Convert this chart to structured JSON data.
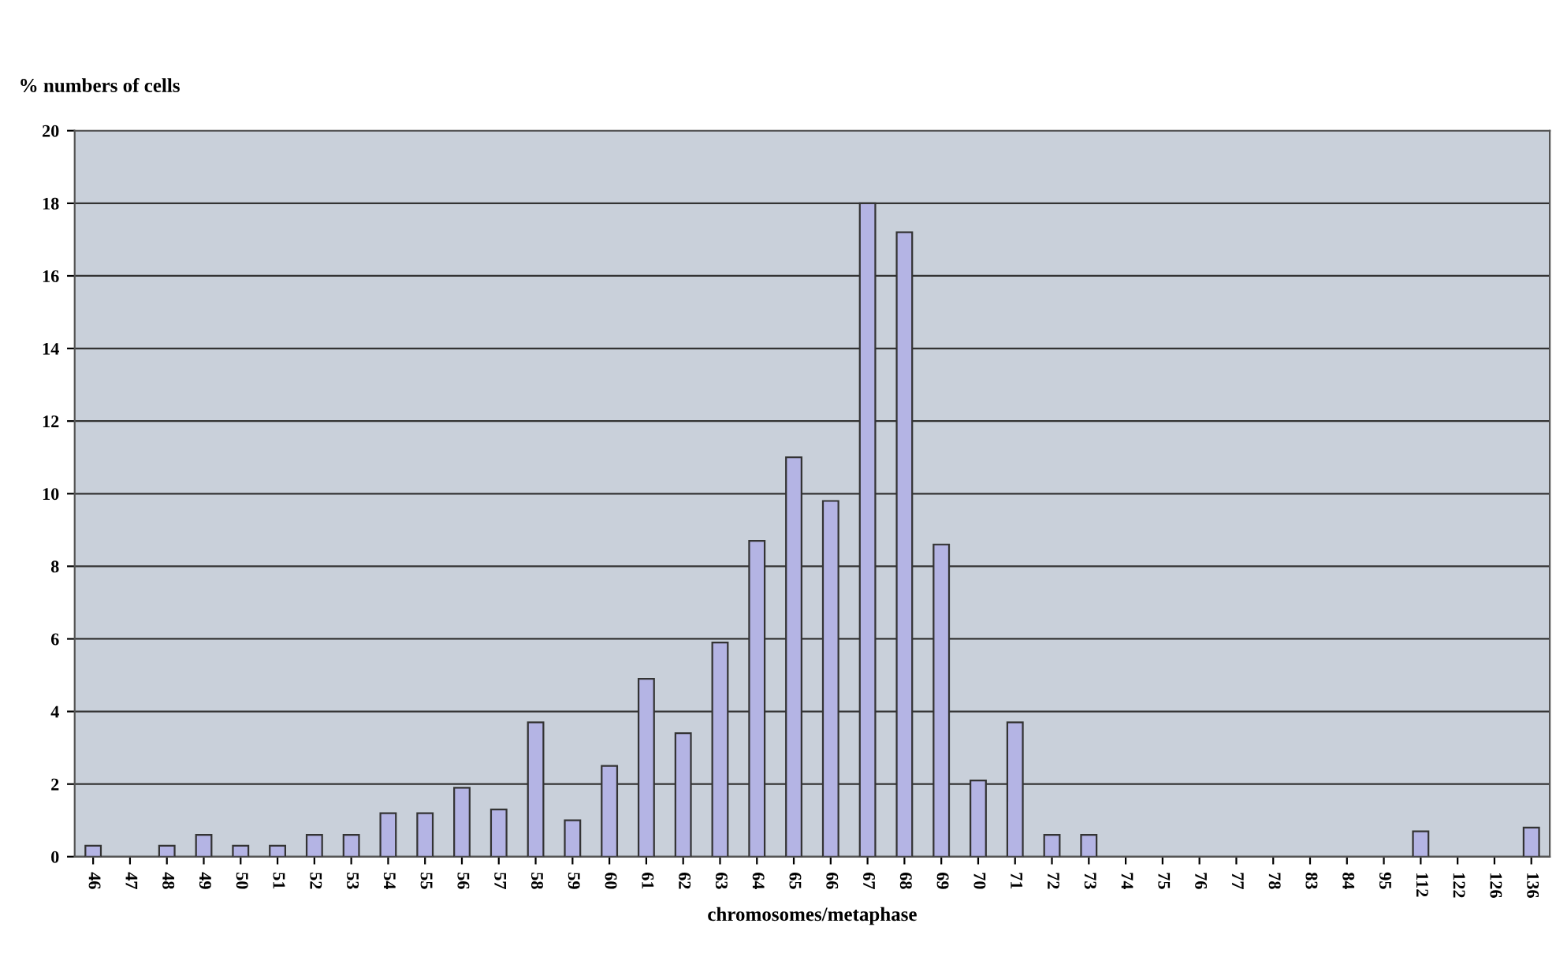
{
  "chart_data": {
    "type": "bar",
    "ylabel": "% numbers of cells",
    "xlabel": "chromosomes/metaphase",
    "categories": [
      "46",
      "47",
      "48",
      "49",
      "50",
      "51",
      "52",
      "53",
      "54",
      "55",
      "56",
      "57",
      "58",
      "59",
      "60",
      "61",
      "62",
      "63",
      "64",
      "65",
      "66",
      "67",
      "68",
      "69",
      "70",
      "71",
      "72",
      "73",
      "74",
      "75",
      "76",
      "77",
      "78",
      "83",
      "84",
      "95",
      "112",
      "122",
      "126",
      "136"
    ],
    "values": [
      0.3,
      0,
      0.3,
      0.6,
      0.3,
      0.3,
      0.6,
      0.6,
      1.2,
      1.2,
      1.9,
      1.3,
      3.7,
      1.0,
      2.5,
      4.9,
      3.4,
      5.9,
      8.7,
      11.0,
      9.8,
      18.0,
      17.2,
      8.6,
      2.1,
      3.7,
      0.6,
      0.6,
      0,
      0,
      0,
      0,
      0,
      0,
      0,
      0,
      0.7,
      0,
      0,
      0.8
    ],
    "color": "#b4b4e4",
    "ylim": [
      0,
      20
    ],
    "yticks": [
      0,
      2,
      4,
      6,
      8,
      10,
      12,
      14,
      16,
      18,
      20
    ],
    "grid": "y"
  }
}
